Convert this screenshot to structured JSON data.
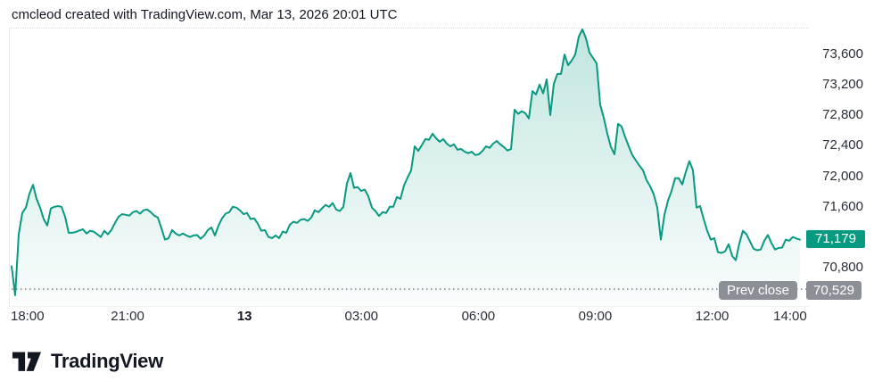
{
  "header": {
    "attribution": "cmcleod created with TradingView.com, Mar 13, 2026 20:01 UTC"
  },
  "footer": {
    "brand": "TradingView"
  },
  "colors": {
    "line": "#089981",
    "fill_top": "rgba(8,153,129,0.25)",
    "fill_bottom": "rgba(8,153,129,0.02)",
    "last_badge_bg": "#089981",
    "prev_badge_bg": "#8c8f96",
    "prev_line": "#9598a1",
    "axis_text": "#2a2e39"
  },
  "chart_data": {
    "type": "area",
    "title": "",
    "xlabel": "",
    "ylabel": "",
    "grid": false,
    "legend": "none",
    "time_span_hours": 20.23,
    "time_start_label": "18:00",
    "ylim": [
      70308,
      73951
    ],
    "last_price": 71179,
    "last_price_label": "71,179",
    "prev_close": 70529,
    "prev_close_value_label": "70,529",
    "prev_close_text": "Prev close",
    "y_ticks": [
      {
        "v": 73600,
        "label": "73,600"
      },
      {
        "v": 73200,
        "label": "73,200"
      },
      {
        "v": 72800,
        "label": "72,800"
      },
      {
        "v": 72400,
        "label": "72,400"
      },
      {
        "v": 72000,
        "label": "72,000"
      },
      {
        "v": 71600,
        "label": "71,600"
      },
      {
        "v": 70800,
        "label": "70,800"
      }
    ],
    "x_ticks": [
      {
        "h": 0,
        "label": "18:00",
        "bold": false,
        "edge": true
      },
      {
        "h": 3,
        "label": "21:00",
        "bold": false
      },
      {
        "h": 6,
        "label": "13",
        "bold": true
      },
      {
        "h": 9,
        "label": "03:00",
        "bold": false
      },
      {
        "h": 12,
        "label": "06:00",
        "bold": false
      },
      {
        "h": 15,
        "label": "09:00",
        "bold": false
      },
      {
        "h": 18,
        "label": "12:00",
        "bold": false
      },
      {
        "h": 20,
        "label": "14:00",
        "bold": false
      }
    ],
    "values": [
      70830,
      70450,
      71250,
      71530,
      71600,
      71780,
      71900,
      71715,
      71600,
      71450,
      71365,
      71590,
      71610,
      71620,
      71610,
      71480,
      71270,
      71270,
      71280,
      71300,
      71315,
      71260,
      71295,
      71285,
      71250,
      71215,
      71295,
      71250,
      71310,
      71400,
      71480,
      71515,
      71505,
      71495,
      71540,
      71555,
      71520,
      71565,
      71575,
      71540,
      71495,
      71470,
      71330,
      71180,
      71200,
      71305,
      71260,
      71235,
      71260,
      71235,
      71215,
      71235,
      71240,
      71190,
      71235,
      71305,
      71340,
      71235,
      71365,
      71460,
      71520,
      71540,
      71610,
      71600,
      71565,
      71515,
      71530,
      71450,
      71460,
      71390,
      71295,
      71305,
      71215,
      71200,
      71235,
      71200,
      71285,
      71270,
      71375,
      71415,
      71400,
      71440,
      71450,
      71425,
      71470,
      71565,
      71540,
      71590,
      71635,
      71610,
      71660,
      71575,
      71555,
      71610,
      71915,
      72055,
      71860,
      71870,
      71820,
      71835,
      71750,
      71600,
      71555,
      71490,
      71540,
      71530,
      71610,
      71610,
      71740,
      71715,
      71890,
      71995,
      72090,
      72405,
      72345,
      72420,
      72500,
      72490,
      72570,
      72510,
      72465,
      72500,
      72440,
      72405,
      72430,
      72360,
      72370,
      72335,
      72315,
      72335,
      72290,
      72300,
      72345,
      72405,
      72385,
      72440,
      72475,
      72430,
      72395,
      72350,
      72370,
      72885,
      72830,
      72865,
      72840,
      72770,
      73130,
      73085,
      73215,
      73100,
      73285,
      72815,
      73225,
      73355,
      73355,
      73610,
      73470,
      73530,
      73610,
      73845,
      73940,
      73825,
      73635,
      73565,
      73495,
      72950,
      72780,
      72570,
      72395,
      72300,
      72700,
      72665,
      72525,
      72405,
      72290,
      72220,
      72150,
      72090,
      71960,
      71880,
      71775,
      71600,
      71180,
      71505,
      71690,
      71820,
      71985,
      71985,
      71905,
      72070,
      72210,
      72090,
      71600,
      71620,
      71450,
      71295,
      71180,
      71200,
      71015,
      71005,
      71025,
      71120,
      70965,
      70910,
      71130,
      71295,
      71250,
      71155,
      71060,
      71040,
      71050,
      71165,
      71240,
      71135,
      71050,
      71070,
      71075,
      71180,
      71165,
      71215,
      71195,
      71179
    ]
  }
}
